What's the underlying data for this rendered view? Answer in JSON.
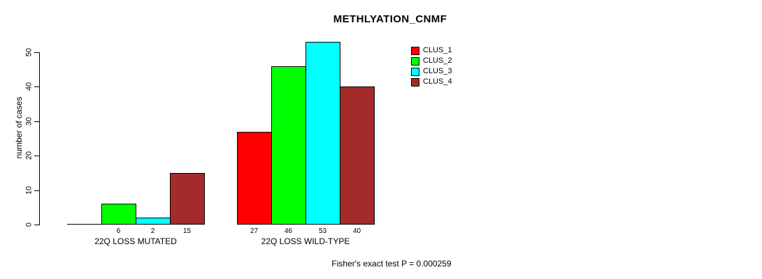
{
  "chart_data": {
    "type": "bar",
    "title": "METHLYATION_CNMF",
    "ylabel": "number of cases",
    "xlabel": "",
    "categories": [
      "22Q LOSS MUTATED",
      "22Q LOSS WILD-TYPE"
    ],
    "series": [
      {
        "name": "CLUS_1",
        "color": "#FF0000",
        "values": [
          0,
          27
        ]
      },
      {
        "name": "CLUS_2",
        "color": "#00FF00",
        "values": [
          6,
          46
        ]
      },
      {
        "name": "CLUS_3",
        "color": "#00FFFF",
        "values": [
          2,
          53
        ]
      },
      {
        "name": "CLUS_4",
        "color": "#A52A2A",
        "values": [
          15,
          40
        ]
      }
    ],
    "ylim": [
      0,
      50
    ],
    "yticks": [
      0,
      10,
      20,
      30,
      40,
      50
    ],
    "grid": false,
    "legend_position": "top-right",
    "bar_value_labels_shown": true,
    "zero_value_labels_hidden": true,
    "annotation": "Fisher's exact test P = 0.000259"
  }
}
